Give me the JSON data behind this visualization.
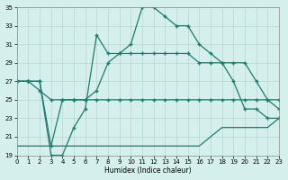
{
  "title": "",
  "xlabel": "Humidex (Indice chaleur)",
  "xlim": [
    0,
    23
  ],
  "ylim": [
    19,
    35
  ],
  "xticks": [
    0,
    1,
    2,
    3,
    4,
    5,
    6,
    7,
    8,
    9,
    10,
    11,
    12,
    13,
    14,
    15,
    16,
    17,
    18,
    19,
    20,
    21,
    22,
    23
  ],
  "yticks": [
    19,
    21,
    23,
    25,
    27,
    29,
    31,
    33,
    35
  ],
  "bg_color": "#d4efec",
  "line_color": "#1e7b6e",
  "grid_color": "#b2d9d4",
  "line1_x": [
    0,
    1,
    2,
    3,
    4,
    5,
    6,
    7,
    8,
    9,
    10,
    11,
    12,
    13,
    14,
    15,
    16,
    17,
    18,
    19,
    20,
    21,
    22,
    23
  ],
  "line1_y": [
    27,
    27,
    27,
    19,
    19,
    22,
    24,
    32,
    30,
    30,
    31,
    35,
    35,
    34,
    33,
    33,
    31,
    30,
    29,
    27,
    24,
    24,
    23,
    23
  ],
  "line2_x": [
    0,
    1,
    2,
    3,
    4,
    5,
    6,
    7,
    8,
    9,
    10,
    11,
    12,
    13,
    14,
    15,
    16,
    17,
    18,
    19,
    20,
    21,
    22,
    23
  ],
  "line2_y": [
    27,
    27,
    27,
    20,
    25,
    25,
    25,
    26,
    29,
    30,
    30,
    30,
    30,
    30,
    30,
    30,
    29,
    29,
    29,
    29,
    29,
    27,
    25,
    25
  ],
  "line3_x": [
    0,
    1,
    2,
    3,
    4,
    5,
    6,
    7,
    8,
    9,
    10,
    11,
    12,
    13,
    14,
    15,
    16,
    17,
    18,
    19,
    20,
    21,
    22,
    23
  ],
  "line3_y": [
    27,
    27,
    26,
    25,
    25,
    25,
    25,
    25,
    25,
    25,
    25,
    25,
    25,
    25,
    25,
    25,
    25,
    25,
    25,
    25,
    25,
    25,
    25,
    24
  ],
  "line4_x": [
    0,
    1,
    2,
    3,
    4,
    5,
    6,
    7,
    8,
    9,
    10,
    11,
    12,
    13,
    14,
    15,
    16,
    17,
    18,
    19,
    20,
    21,
    22,
    23
  ],
  "line4_y": [
    20,
    20,
    20,
    20,
    20,
    20,
    20,
    20,
    20,
    20,
    20,
    20,
    20,
    20,
    20,
    20,
    20,
    21,
    22,
    22,
    22,
    22,
    22,
    23
  ]
}
